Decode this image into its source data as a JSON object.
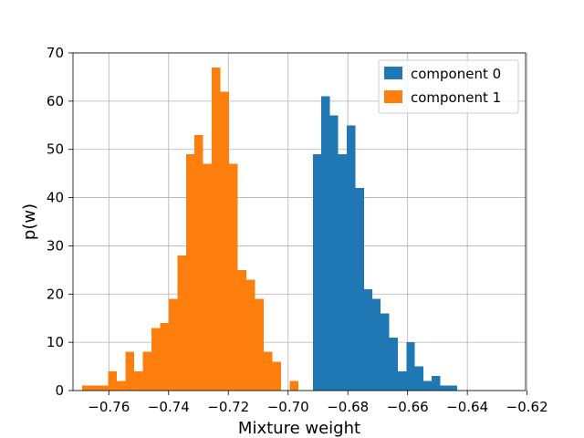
{
  "chart_data": {
    "type": "bar",
    "subtype": "overlaid-histogram",
    "xlabel": "Mixture weight",
    "ylabel": "p(w)",
    "xlim": [
      -0.772,
      -0.6205
    ],
    "ylim": [
      0,
      70
    ],
    "x_ticks": [
      -0.76,
      -0.74,
      -0.72,
      -0.7,
      -0.68,
      -0.66,
      -0.64,
      -0.62
    ],
    "x_tick_labels": [
      "−0.76",
      "−0.74",
      "−0.72",
      "−0.70",
      "−0.68",
      "−0.66",
      "−0.64",
      "−0.62"
    ],
    "y_ticks": [
      0,
      10,
      20,
      30,
      40,
      50,
      60,
      70
    ],
    "y_tick_labels": [
      "0",
      "10",
      "20",
      "30",
      "40",
      "50",
      "60",
      "70"
    ],
    "grid": true,
    "legend_position": "top-right",
    "series": [
      {
        "name": "component 0",
        "color": "#1f77b4",
        "bins": [
          [
            -0.6917,
            -0.6889,
            49
          ],
          [
            -0.6889,
            -0.686,
            61
          ],
          [
            -0.686,
            -0.6832,
            57
          ],
          [
            -0.6832,
            -0.6803,
            49
          ],
          [
            -0.6803,
            -0.6775,
            55
          ],
          [
            -0.6775,
            -0.6746,
            42
          ],
          [
            -0.6746,
            -0.6718,
            21
          ],
          [
            -0.6718,
            -0.669,
            19
          ],
          [
            -0.669,
            -0.6661,
            16
          ],
          [
            -0.6661,
            -0.6633,
            11
          ],
          [
            -0.6633,
            -0.6604,
            4
          ],
          [
            -0.6604,
            -0.6576,
            10
          ],
          [
            -0.6576,
            -0.6547,
            5
          ],
          [
            -0.6547,
            -0.6519,
            2
          ],
          [
            -0.6519,
            -0.6491,
            3
          ],
          [
            -0.6491,
            -0.6462,
            1
          ],
          [
            -0.6462,
            -0.6434,
            1
          ]
        ]
      },
      {
        "name": "component 1",
        "color": "#ff7f0e",
        "bins": [
          [
            -0.769,
            -0.7661,
            1
          ],
          [
            -0.7661,
            -0.7632,
            1
          ],
          [
            -0.7632,
            -0.7603,
            1
          ],
          [
            -0.7603,
            -0.7574,
            4
          ],
          [
            -0.7574,
            -0.7545,
            2
          ],
          [
            -0.7545,
            -0.7516,
            8
          ],
          [
            -0.7516,
            -0.7487,
            4
          ],
          [
            -0.7487,
            -0.7458,
            8
          ],
          [
            -0.7458,
            -0.7429,
            13
          ],
          [
            -0.7429,
            -0.74,
            14
          ],
          [
            -0.74,
            -0.7371,
            19
          ],
          [
            -0.7371,
            -0.7342,
            28
          ],
          [
            -0.7342,
            -0.7313,
            49
          ],
          [
            -0.7313,
            -0.7284,
            53
          ],
          [
            -0.7284,
            -0.7255,
            47
          ],
          [
            -0.7255,
            -0.7226,
            67
          ],
          [
            -0.7226,
            -0.7197,
            62
          ],
          [
            -0.7197,
            -0.7168,
            47
          ],
          [
            -0.7168,
            -0.7139,
            25
          ],
          [
            -0.7139,
            -0.711,
            23
          ],
          [
            -0.711,
            -0.7081,
            19
          ],
          [
            -0.7081,
            -0.7052,
            8
          ],
          [
            -0.7052,
            -0.7023,
            6
          ],
          [
            -0.6994,
            -0.6965,
            2
          ]
        ]
      }
    ]
  }
}
